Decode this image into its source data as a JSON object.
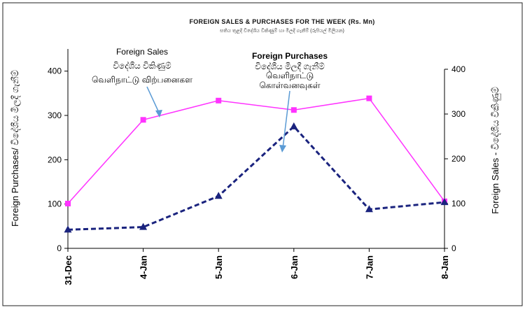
{
  "chart_data": {
    "type": "line",
    "title": "FOREIGN SALES & PURCHASES FOR THE WEEK (Rs. Mn)",
    "subtitle": "සතිය තුළදී විදේශීය විකිණුම් හා මිලදී ගැනීම් (රුපියල් මිලියන)",
    "categories": [
      "31-Dec",
      "4-Jan",
      "5-Jan",
      "6-Jan",
      "7-Jan",
      "8-Jan"
    ],
    "series": [
      {
        "name": "Foreign Sales",
        "axis": "right",
        "color": "#ff33ff",
        "marker": "square",
        "line_style": "solid",
        "values": [
          100,
          287,
          330,
          309,
          335,
          105
        ]
      },
      {
        "name": "Foreign Purchases",
        "axis": "left",
        "color": "#1a237e",
        "marker": "triangle",
        "line_style": "dashed",
        "values": [
          42,
          48,
          118,
          275,
          88,
          104
        ]
      }
    ],
    "left_axis": {
      "label": "Foreign Purchases/ විදේශීය මිලදී ගැනීම්",
      "ylim": [
        0,
        450
      ],
      "ticks": [
        "0",
        "100",
        "200",
        "300",
        "400"
      ]
    },
    "right_axis": {
      "label": "Foreign Sales  -  විදේශීය විකිණුම්",
      "ylim": [
        0,
        400
      ],
      "ticks": [
        "0",
        "100",
        "200",
        "300",
        "400"
      ]
    },
    "annotations": {
      "sales": [
        "Foreign Sales",
        "විදේශීය විකිණුම්",
        "வெளிநாட்டு  விற்பனைகள"
      ],
      "purchases": [
        "Foreign Purchases",
        "විදේශීය මිලදී ගැනීම්",
        "வெளிநாட்டு",
        "கொள்வனவுகள்"
      ]
    },
    "grid": false,
    "legend": "none"
  }
}
